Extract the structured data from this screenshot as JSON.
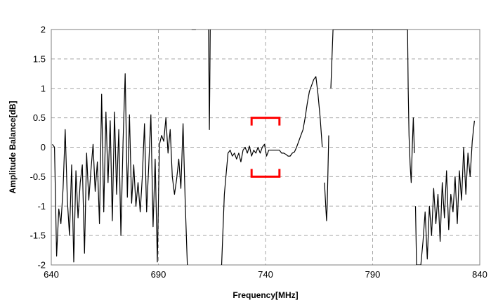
{
  "chart_data": {
    "type": "line",
    "title": "",
    "xlabel": "Frequency[MHz]",
    "ylabel": "Amplitude Balance[dB]",
    "xlim": [
      640,
      840
    ],
    "ylim": [
      -2,
      2
    ],
    "x_ticks": [
      640,
      690,
      740,
      790,
      840
    ],
    "x_tick_labels": [
      "640",
      "690",
      "740",
      "790",
      "840"
    ],
    "y_ticks": [
      2,
      1.5,
      1,
      0.5,
      0,
      -0.5,
      -1,
      -1.5,
      -2
    ],
    "y_tick_labels": [
      "2",
      "1.5",
      "1",
      "0.5",
      "0",
      "-0.5",
      "-1",
      "-1.5",
      "-2"
    ],
    "grid": "dashed",
    "legend": "none",
    "colors": {
      "series": "#000000",
      "spec_marker": "#ff0000",
      "grid": "#a6a6a6"
    },
    "series": [
      {
        "values": [
          [
            640.5,
            0.05
          ],
          [
            641.5,
            0
          ],
          [
            642.5,
            -1.85
          ],
          [
            643.5,
            -1.05
          ],
          [
            644.5,
            -1.3
          ],
          [
            645.5,
            -0.7
          ],
          [
            646.5,
            0.3
          ],
          [
            647.5,
            -0.9
          ],
          [
            648.5,
            -1.5
          ],
          [
            649.5,
            -0.3
          ],
          [
            650.5,
            -1.95
          ],
          [
            651.5,
            -0.4
          ],
          [
            652.5,
            -1.2
          ],
          [
            653.5,
            -0.6
          ],
          [
            654.5,
            -0.3
          ],
          [
            655.5,
            -1.8
          ],
          [
            656.5,
            -0.1
          ],
          [
            657.5,
            -0.9
          ],
          [
            658.5,
            -0.4
          ],
          [
            659.5,
            0.05
          ],
          [
            660.5,
            -0.75
          ],
          [
            661.5,
            -0.25
          ],
          [
            662.5,
            -1.3
          ],
          [
            663.5,
            0.9
          ],
          [
            664.5,
            -1.1
          ],
          [
            665.5,
            0.6
          ],
          [
            666.5,
            -0.6
          ],
          [
            667.5,
            0.45
          ],
          [
            668.5,
            -1.25
          ],
          [
            669.5,
            0.6
          ],
          [
            670.5,
            -0.8
          ],
          [
            671.5,
            0.3
          ],
          [
            672.5,
            -1.5
          ],
          [
            673.5,
            0.1
          ],
          [
            674.5,
            1.25
          ],
          [
            675.5,
            -0.85
          ],
          [
            676.5,
            0.55
          ],
          [
            677.5,
            -0.95
          ],
          [
            678.5,
            -0.3
          ],
          [
            679.5,
            -1.0
          ],
          [
            680.5,
            -0.6
          ],
          [
            681.5,
            -1.1
          ],
          [
            682.5,
            -0.5
          ],
          [
            683.5,
            0.4
          ],
          [
            684.5,
            -1.1
          ],
          [
            685.5,
            -0.3
          ],
          [
            686.5,
            0.55
          ],
          [
            687.5,
            -1.35
          ],
          [
            688.5,
            -0.2
          ],
          [
            689.5,
            -1.95
          ],
          [
            690.5,
            0.05
          ],
          [
            691.5,
            0.2
          ],
          [
            692.5,
            0.1
          ],
          [
            693.5,
            0.5
          ],
          [
            694.5,
            -0.1
          ],
          [
            695.5,
            0.3
          ],
          [
            696.5,
            -0.5
          ],
          [
            697.5,
            -0.8
          ],
          [
            698.5,
            -0.55
          ],
          [
            699.5,
            -0.2
          ],
          [
            700.5,
            -0.7
          ],
          [
            701.5,
            0.4
          ],
          [
            702.5,
            -0.9
          ],
          [
            703.5,
            -2.0
          ],
          [
            705.5,
            2.0
          ],
          [
            707.5,
            2.0
          ],
          [
            713.4,
            2.0
          ],
          [
            713.6,
            1.2
          ],
          [
            713.8,
            0.3
          ],
          [
            714.0,
            1.1
          ],
          [
            714.2,
            2.0
          ],
          [
            719.5,
            -2.0
          ],
          [
            720.8,
            -0.8
          ],
          [
            721.5,
            -0.5
          ],
          [
            722.5,
            -0.1
          ],
          [
            723.5,
            -0.05
          ],
          [
            724.5,
            -0.15
          ],
          [
            725.5,
            -0.1
          ],
          [
            726.5,
            -0.2
          ],
          [
            727.5,
            -0.1
          ],
          [
            728.5,
            -0.25
          ],
          [
            729.5,
            -0.05
          ],
          [
            730.5,
            0.0
          ],
          [
            731.5,
            -0.1
          ],
          [
            732.5,
            0.02
          ],
          [
            733.5,
            -0.15
          ],
          [
            734.5,
            -0.05
          ],
          [
            735.5,
            -0.1
          ],
          [
            736.5,
            0.0
          ],
          [
            737.5,
            -0.1
          ],
          [
            738.5,
            0.0
          ],
          [
            739.5,
            0.05
          ],
          [
            740.5,
            -0.15
          ],
          [
            741.5,
            -0.05
          ],
          [
            742.5,
            -0.05
          ],
          [
            743.5,
            -0.05
          ],
          [
            744.5,
            -0.05
          ],
          [
            745.5,
            -0.05
          ],
          [
            746.5,
            -0.05
          ],
          [
            747.5,
            -0.1
          ],
          [
            748.5,
            -0.1
          ],
          [
            749.5,
            -0.12
          ],
          [
            750.5,
            -0.15
          ],
          [
            751.5,
            -0.15
          ],
          [
            752.5,
            -0.1
          ],
          [
            753.5,
            -0.08
          ],
          [
            754.5,
            0.0
          ],
          [
            755.5,
            0.1
          ],
          [
            756.5,
            0.2
          ],
          [
            757.5,
            0.3
          ],
          [
            758.5,
            0.5
          ],
          [
            759.5,
            0.75
          ],
          [
            760.5,
            0.95
          ],
          [
            761.5,
            1.05
          ],
          [
            762.5,
            1.15
          ],
          [
            763.5,
            1.2
          ],
          [
            764.5,
            0.9
          ],
          [
            765.5,
            0.5
          ],
          [
            766.5,
            0.0
          ],
          [
            767.5,
            -0.6
          ],
          [
            768.5,
            -1.25
          ],
          [
            768.8,
            -1.0
          ],
          [
            769.5,
            0.2
          ],
          [
            770.5,
            1.0
          ],
          [
            771.5,
            2.0
          ],
          [
            806.3,
            2.0
          ],
          [
            806.6,
            1.0
          ],
          [
            807.0,
            0.2
          ],
          [
            807.5,
            -0.3
          ],
          [
            808.0,
            -0.6
          ],
          [
            808.5,
            0.0
          ],
          [
            809.0,
            0.5
          ],
          [
            809.5,
            -0.1
          ],
          [
            810.0,
            -1.0
          ],
          [
            810.5,
            -2.0
          ],
          [
            812.5,
            -2.0
          ],
          [
            813.5,
            -1.6
          ],
          [
            814.5,
            -1.1
          ],
          [
            815.5,
            -1.9
          ],
          [
            816.5,
            -1.0
          ],
          [
            817.5,
            -1.5
          ],
          [
            818.5,
            -0.7
          ],
          [
            819.5,
            -1.3
          ],
          [
            820.5,
            -0.8
          ],
          [
            821.5,
            -1.6
          ],
          [
            822.5,
            -0.6
          ],
          [
            823.5,
            -1.2
          ],
          [
            824.5,
            -0.4
          ],
          [
            825.5,
            -1.4
          ],
          [
            826.5,
            -0.8
          ],
          [
            827.5,
            -1.1
          ],
          [
            828.5,
            -0.5
          ],
          [
            829.5,
            -1.3
          ],
          [
            830.5,
            -0.4
          ],
          [
            831.5,
            -0.9
          ],
          [
            832.5,
            0.0
          ],
          [
            833.5,
            -0.8
          ],
          [
            834.5,
            -0.1
          ],
          [
            835.5,
            -0.5
          ],
          [
            836.5,
            0.1
          ],
          [
            837.5,
            0.45
          ],
          [
            838.5,
            -0.3
          ],
          [
            839.5,
            -0.6
          ]
        ],
        "segments": [
          [
            0,
            63
          ],
          [
            64,
            65
          ],
          [
            66,
            70
          ],
          [
            71,
            118
          ],
          [
            119,
            122
          ],
          [
            123,
            132
          ],
          [
            133,
            160
          ]
        ]
      }
    ],
    "annotations": [
      {
        "type": "spec-bracket",
        "x_range": [
          733.5,
          746.5
        ],
        "y": 0.5,
        "direction": "down"
      },
      {
        "type": "spec-bracket",
        "x_range": [
          733.5,
          746.5
        ],
        "y": -0.5,
        "direction": "up"
      }
    ]
  }
}
